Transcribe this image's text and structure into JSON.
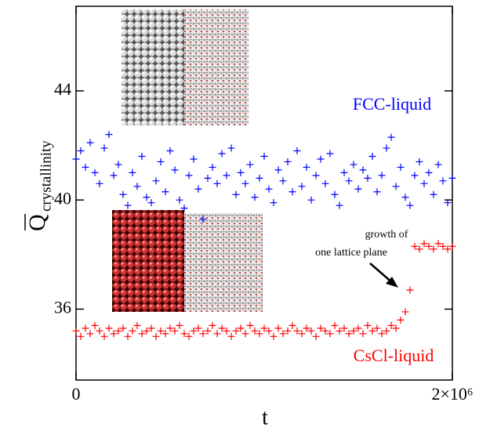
{
  "chart_data": {
    "type": "scatter",
    "xlabel": "t",
    "ylabel": "Q",
    "ylabel_sub": "crystallinity",
    "xlim": [
      0,
      2000000
    ],
    "xticks": [
      0,
      {
        "value": 2000000,
        "label": "2×10⁶"
      }
    ],
    "ylim": [
      33.4,
      47.1
    ],
    "yticks": [
      36,
      40,
      44
    ],
    "annotation": [
      "growth of",
      "one lattice plane"
    ],
    "series": [
      {
        "name": "FCC-liquid",
        "color": "#0000ff",
        "x": [
          0,
          25000,
          50000,
          75000,
          100000,
          125000,
          150000,
          175000,
          200000,
          225000,
          250000,
          275000,
          300000,
          325000,
          350000,
          375000,
          400000,
          425000,
          450000,
          475000,
          500000,
          525000,
          550000,
          575000,
          600000,
          625000,
          650000,
          675000,
          700000,
          725000,
          750000,
          775000,
          800000,
          825000,
          850000,
          875000,
          900000,
          925000,
          950000,
          975000,
          1000000,
          1025000,
          1050000,
          1075000,
          1100000,
          1125000,
          1150000,
          1175000,
          1200000,
          1225000,
          1250000,
          1275000,
          1300000,
          1325000,
          1350000,
          1375000,
          1400000,
          1425000,
          1450000,
          1475000,
          1500000,
          1525000,
          1550000,
          1575000,
          1600000,
          1625000,
          1650000,
          1675000,
          1700000,
          1725000,
          1750000,
          1775000,
          1800000,
          1825000,
          1850000,
          1875000,
          1900000,
          1925000,
          1950000,
          1975000,
          2000000
        ],
        "values": [
          41.5,
          41.8,
          41.2,
          42.1,
          41.0,
          40.6,
          41.9,
          42.4,
          40.9,
          41.3,
          40.2,
          39.8,
          41.0,
          40.5,
          41.6,
          40.1,
          39.9,
          40.7,
          41.4,
          40.3,
          41.8,
          41.1,
          40.0,
          39.7,
          40.9,
          41.5,
          40.4,
          39.3,
          40.8,
          41.2,
          40.6,
          41.7,
          40.9,
          41.9,
          40.2,
          41.0,
          40.6,
          41.3,
          40.1,
          40.8,
          41.6,
          40.4,
          39.9,
          41.1,
          40.7,
          41.4,
          40.3,
          41.8,
          40.5,
          41.2,
          40.0,
          40.9,
          41.5,
          40.6,
          41.7,
          40.2,
          39.8,
          41.0,
          40.7,
          41.3,
          40.4,
          41.1,
          40.8,
          41.6,
          40.3,
          40.9,
          41.9,
          42.3,
          40.5,
          41.2,
          40.1,
          39.8,
          40.9,
          41.4,
          40.6,
          41.0,
          40.2,
          41.3,
          40.7,
          39.9,
          40.8
        ]
      },
      {
        "name": "CsCl-liquid",
        "color": "#ff0000",
        "x": [
          0,
          25000,
          50000,
          75000,
          100000,
          125000,
          150000,
          175000,
          200000,
          225000,
          250000,
          275000,
          300000,
          325000,
          350000,
          375000,
          400000,
          425000,
          450000,
          475000,
          500000,
          525000,
          550000,
          575000,
          600000,
          625000,
          650000,
          675000,
          700000,
          725000,
          750000,
          775000,
          800000,
          825000,
          850000,
          875000,
          900000,
          925000,
          950000,
          975000,
          1000000,
          1025000,
          1050000,
          1075000,
          1100000,
          1125000,
          1150000,
          1175000,
          1200000,
          1225000,
          1250000,
          1275000,
          1300000,
          1325000,
          1350000,
          1375000,
          1400000,
          1425000,
          1450000,
          1475000,
          1500000,
          1525000,
          1550000,
          1575000,
          1600000,
          1625000,
          1650000,
          1675000,
          1700000,
          1725000,
          1750000,
          1775000,
          1800000,
          1825000,
          1850000,
          1875000,
          1900000,
          1925000,
          1950000,
          1975000,
          2000000
        ],
        "values": [
          35.2,
          35.0,
          35.3,
          35.1,
          35.4,
          35.2,
          35.0,
          35.3,
          35.1,
          35.2,
          35.3,
          35.0,
          35.2,
          35.4,
          35.1,
          35.2,
          35.3,
          35.0,
          35.2,
          35.1,
          35.3,
          35.2,
          35.4,
          35.1,
          35.0,
          35.2,
          35.3,
          35.1,
          35.2,
          35.4,
          35.1,
          35.3,
          35.2,
          35.0,
          35.2,
          35.3,
          35.1,
          35.4,
          35.2,
          35.1,
          35.3,
          35.2,
          35.0,
          35.3,
          35.1,
          35.2,
          35.4,
          35.2,
          35.1,
          35.3,
          35.2,
          35.0,
          35.3,
          35.2,
          35.1,
          35.4,
          35.2,
          35.3,
          35.1,
          35.2,
          35.3,
          35.1,
          35.4,
          35.2,
          35.3,
          35.1,
          35.2,
          35.4,
          35.3,
          35.6,
          35.9,
          36.7,
          38.3,
          38.2,
          38.4,
          38.3,
          38.2,
          38.4,
          38.3,
          38.2,
          38.3
        ]
      }
    ]
  }
}
